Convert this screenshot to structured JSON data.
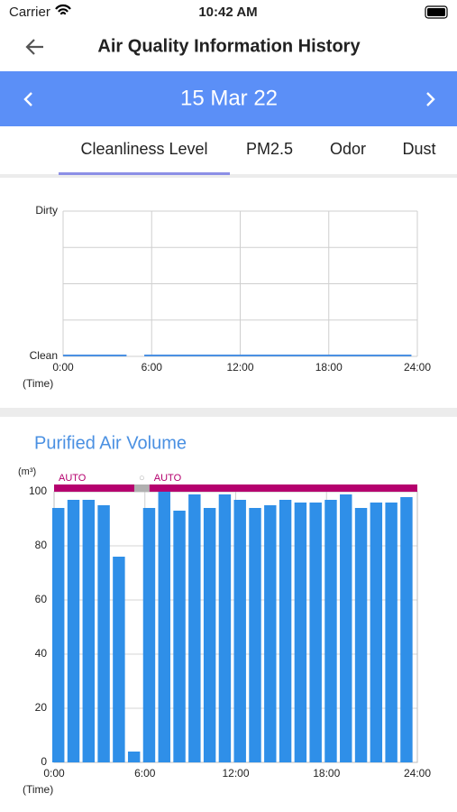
{
  "status_bar": {
    "carrier": "Carrier",
    "time": "10:42 AM"
  },
  "header": {
    "title": "Air Quality Information History"
  },
  "date_nav": {
    "date": "15 Mar 22"
  },
  "tabs": {
    "items": [
      "Cleanliness Level",
      "PM2.5",
      "Odor",
      "Dust"
    ],
    "selected": 0
  },
  "cleanliness_chart": {
    "type": "line",
    "xlim": [
      0,
      24
    ],
    "xticks": [
      {
        "value": 0,
        "label": "0:00"
      },
      {
        "value": 6,
        "label": "6:00"
      },
      {
        "value": 12,
        "label": "12:00"
      },
      {
        "value": 18,
        "label": "18:00"
      },
      {
        "value": 24,
        "label": "24:00"
      }
    ],
    "x_label": "(Time)",
    "ylim": [
      0,
      4
    ],
    "yticks": [
      {
        "value": 0,
        "label": "Clean"
      },
      {
        "value": 4,
        "label": "Dirty"
      }
    ],
    "ygrid": [
      0,
      1,
      2,
      3,
      4
    ],
    "series": [
      {
        "color": "#4a90e2",
        "x": [
          0,
          4.3,
          4.9,
          5.5,
          23.6
        ],
        "values": [
          0,
          0,
          null,
          0,
          0
        ]
      }
    ]
  },
  "air_volume_chart": {
    "type": "bar",
    "title": "Purified Air Volume",
    "y_label": "(m³)",
    "x": [
      0,
      1,
      2,
      3,
      4,
      5,
      6,
      7,
      8,
      9,
      10,
      11,
      12,
      13,
      14,
      15,
      16,
      17,
      18,
      19,
      20,
      21,
      22,
      23
    ],
    "values": [
      94,
      97,
      97,
      95,
      76,
      4,
      94,
      100,
      93,
      99,
      94,
      99,
      97,
      94,
      95,
      97,
      96,
      96,
      97,
      99,
      94,
      96,
      96,
      98
    ],
    "color": "#2f8fe8",
    "xlim": [
      0,
      24
    ],
    "xticks": [
      {
        "value": 0,
        "label": "0:00"
      },
      {
        "value": 6,
        "label": "6:00"
      },
      {
        "value": 12,
        "label": "12:00"
      },
      {
        "value": 18,
        "label": "18:00"
      },
      {
        "value": 24,
        "label": "24:00"
      }
    ],
    "x_label": "(Time)",
    "ylim": [
      0,
      100
    ],
    "yticks": [
      0,
      20,
      40,
      60,
      80,
      100
    ],
    "grid": true,
    "modes": [
      {
        "label": "AUTO",
        "start": 0,
        "end": 5.3,
        "color": "#b5006e"
      },
      {
        "label": "○",
        "start": 5.3,
        "end": 6.3,
        "color": "#b0b0b0"
      },
      {
        "label": "AUTO",
        "start": 6.3,
        "end": 24,
        "color": "#b5006e"
      }
    ]
  }
}
